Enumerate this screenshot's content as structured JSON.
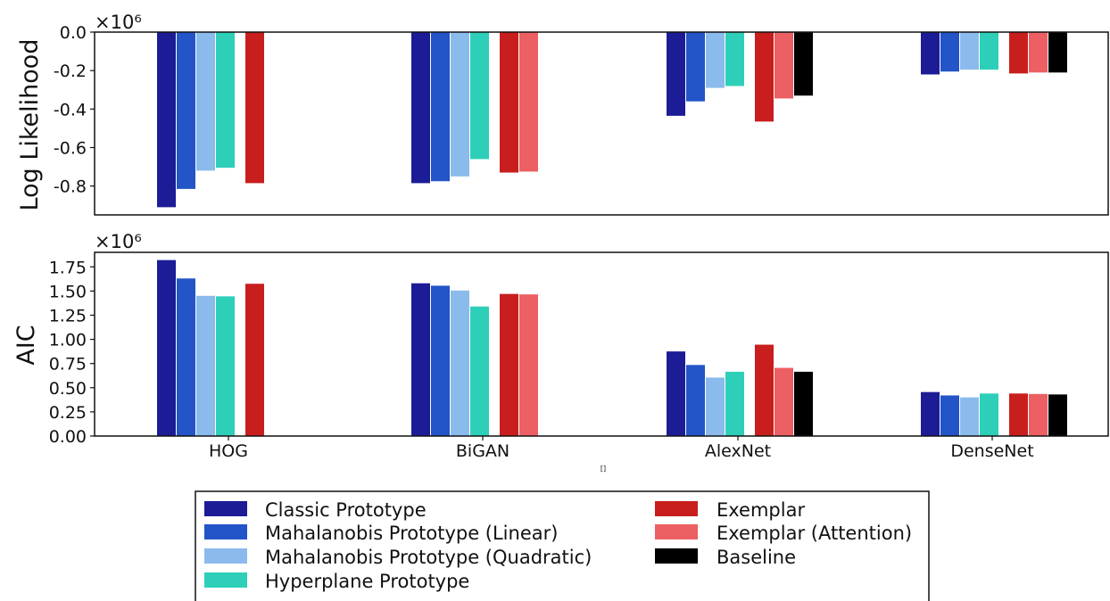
{
  "chart_data": [
    {
      "type": "bar",
      "ylabel": "Log Likelihood",
      "multiplier": "×10⁶",
      "ylim": [
        -0.95,
        0.0
      ],
      "yticks": [
        0.0,
        -0.2,
        -0.4,
        -0.6,
        -0.8
      ],
      "ytick_labels": [
        "0.0",
        "-0.2",
        "-0.4",
        "-0.6",
        "-0.8"
      ],
      "categories": [
        "HOG",
        "BiGAN",
        "AlexNet",
        "DenseNet"
      ],
      "series": [
        {
          "name": "Classic Prototype",
          "values": [
            -0.91,
            -0.785,
            -0.435,
            -0.22
          ]
        },
        {
          "name": "Mahalanobis Prototype (Linear)",
          "values": [
            -0.815,
            -0.775,
            -0.36,
            -0.205
          ]
        },
        {
          "name": "Mahalanobis Prototype (Quadratic)",
          "values": [
            -0.72,
            -0.75,
            -0.29,
            -0.195
          ]
        },
        {
          "name": "Hyperplane Prototype",
          "values": [
            -0.705,
            -0.66,
            -0.28,
            -0.195
          ]
        },
        {
          "name": "Exemplar",
          "values": [
            -0.785,
            -0.73,
            -0.465,
            -0.215
          ]
        },
        {
          "name": "Exemplar (Attention)",
          "values": [
            null,
            -0.725,
            -0.345,
            -0.21
          ]
        },
        {
          "name": "Baseline",
          "values": [
            null,
            null,
            -0.33,
            -0.21
          ]
        }
      ]
    },
    {
      "type": "bar",
      "ylabel": "AIC",
      "multiplier": "×10⁶",
      "ylim": [
        0.0,
        1.9
      ],
      "yticks": [
        0.0,
        0.25,
        0.5,
        0.75,
        1.0,
        1.25,
        1.5,
        1.75
      ],
      "ytick_labels": [
        "0.00",
        "0.25",
        "0.50",
        "0.75",
        "1.00",
        "1.25",
        "1.50",
        "1.75"
      ],
      "categories": [
        "HOG",
        "BiGAN",
        "AlexNet",
        "DenseNet"
      ],
      "series": [
        {
          "name": "Classic Prototype",
          "values": [
            1.82,
            1.58,
            0.875,
            0.455
          ]
        },
        {
          "name": "Mahalanobis Prototype (Linear)",
          "values": [
            1.63,
            1.555,
            0.735,
            0.42
          ]
        },
        {
          "name": "Mahalanobis Prototype (Quadratic)",
          "values": [
            1.45,
            1.505,
            0.605,
            0.4
          ]
        },
        {
          "name": "Hyperplane Prototype",
          "values": [
            1.445,
            1.34,
            0.665,
            0.44
          ]
        },
        {
          "name": "Exemplar",
          "values": [
            1.575,
            1.47,
            0.945,
            0.44
          ]
        },
        {
          "name": "Exemplar (Attention)",
          "values": [
            null,
            1.465,
            0.705,
            0.435
          ]
        },
        {
          "name": "Baseline",
          "values": [
            null,
            null,
            0.665,
            0.43
          ]
        }
      ]
    }
  ],
  "legend": {
    "placement": "bottom-center",
    "columns": [
      [
        "Classic Prototype",
        "Mahalanobis Prototype (Linear)",
        "Mahalanobis Prototype (Quadratic)",
        "Hyperplane Prototype"
      ],
      [
        "Exemplar",
        "Exemplar (Attention)",
        "Baseline"
      ]
    ]
  },
  "colors": {
    "Classic Prototype": "#1c1c96",
    "Mahalanobis Prototype (Linear)": "#2354c8",
    "Mahalanobis Prototype (Quadratic)": "#8abbec",
    "Hyperplane Prototype": "#2ecfb8",
    "Exemplar": "#c81e1e",
    "Exemplar (Attention)": "#ec5f62",
    "Baseline": "#000000"
  },
  "stray_mark": "[]"
}
